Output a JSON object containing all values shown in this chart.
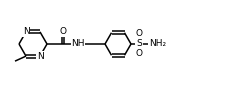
{
  "bg_color": "#ffffff",
  "line_color": "#000000",
  "lw": 1.1,
  "fs": 6.5,
  "figsize": [
    2.25,
    0.87
  ],
  "dpi": 100,
  "xlim": [
    0,
    225
  ],
  "ylim": [
    0,
    87
  ]
}
